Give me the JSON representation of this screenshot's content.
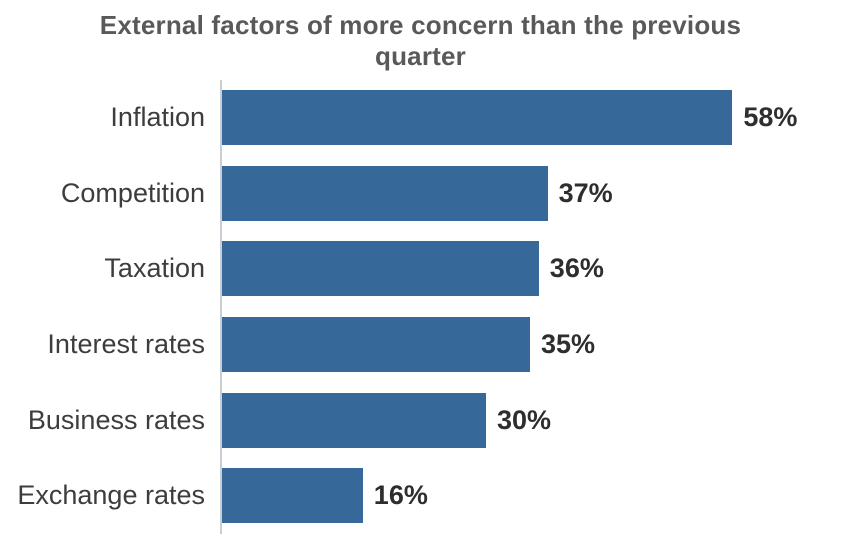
{
  "chart_data": {
    "type": "bar",
    "orientation": "horizontal",
    "title": "External factors of more concern than the previous quarter",
    "categories": [
      "Inflation",
      "Competition",
      "Taxation",
      "Interest rates",
      "Business rates",
      "Exchange rates"
    ],
    "values": [
      58,
      37,
      36,
      35,
      30,
      16
    ],
    "value_labels": [
      "58%",
      "37%",
      "36%",
      "35%",
      "30%",
      "16%"
    ],
    "value_suffix": "%",
    "xlabel": "",
    "ylabel": "",
    "xlim": [
      0,
      60
    ],
    "grid": false,
    "legend": false,
    "bar_color": "#36699a",
    "title_color": "#58595b",
    "category_label_color": "#3d3d3d",
    "value_label_color": "#2e2e2e",
    "axis_line_color": "#c9ced4"
  }
}
